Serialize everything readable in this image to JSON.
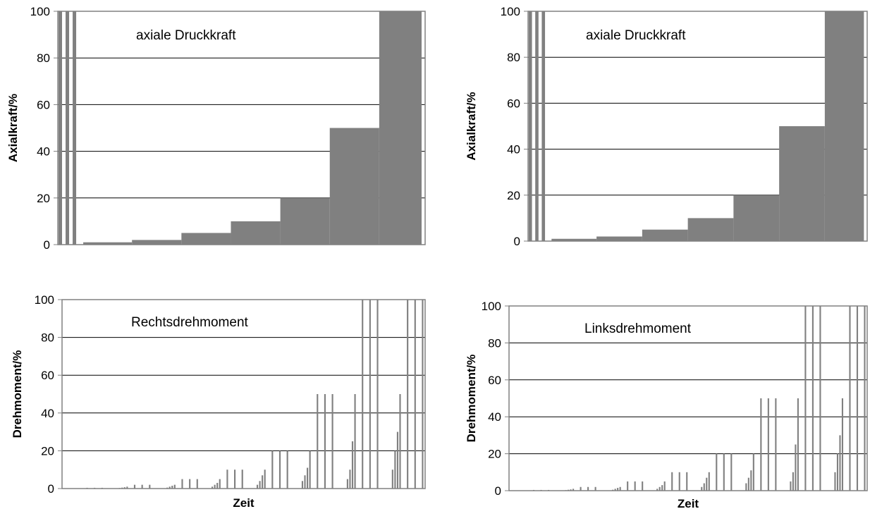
{
  "chart_data": [
    {
      "id": "top-left",
      "type": "bar",
      "title": "",
      "annotation": "axiale Druckkraft",
      "xlabel": "",
      "ylabel": "Axialkraft/%",
      "ylim": [
        0,
        100
      ],
      "yticks": [
        "0",
        "20",
        "40",
        "60",
        "80",
        "100"
      ],
      "grid": true,
      "x_range": [
        0,
        52
      ],
      "bar_color": "#808080",
      "bars": [
        {
          "x0": 0.1,
          "x1": 0.6,
          "y": 100
        },
        {
          "x0": 1.1,
          "x1": 1.6,
          "y": 100
        },
        {
          "x0": 2.1,
          "x1": 2.6,
          "y": 100
        },
        {
          "x0": 3.6,
          "x1": 10.5,
          "y": 1
        },
        {
          "x0": 10.5,
          "x1": 17.5,
          "y": 2
        },
        {
          "x0": 17.5,
          "x1": 24.5,
          "y": 5
        },
        {
          "x0": 24.5,
          "x1": 31.5,
          "y": 10
        },
        {
          "x0": 31.5,
          "x1": 38.5,
          "y": 20
        },
        {
          "x0": 38.5,
          "x1": 45.5,
          "y": 50
        },
        {
          "x0": 45.5,
          "x1": 51.5,
          "y": 100
        }
      ]
    },
    {
      "id": "top-right",
      "type": "bar",
      "title": "",
      "annotation": "axiale Druckkraft",
      "xlabel": "",
      "ylabel": "Axialkraft/%",
      "ylim": [
        0,
        100
      ],
      "yticks": [
        "0",
        "20",
        "40",
        "60",
        "80",
        "100"
      ],
      "grid": true,
      "x_range": [
        0,
        52
      ],
      "bar_color": "#808080",
      "bars": [
        {
          "x0": 0.1,
          "x1": 0.6,
          "y": 100
        },
        {
          "x0": 1.1,
          "x1": 1.6,
          "y": 100
        },
        {
          "x0": 2.1,
          "x1": 2.6,
          "y": 100
        },
        {
          "x0": 3.6,
          "x1": 10.5,
          "y": 1
        },
        {
          "x0": 10.5,
          "x1": 17.5,
          "y": 2
        },
        {
          "x0": 17.5,
          "x1": 24.5,
          "y": 5
        },
        {
          "x0": 24.5,
          "x1": 31.5,
          "y": 10
        },
        {
          "x0": 31.5,
          "x1": 38.5,
          "y": 20
        },
        {
          "x0": 38.5,
          "x1": 45.5,
          "y": 50
        },
        {
          "x0": 45.5,
          "x1": 51.5,
          "y": 100
        }
      ]
    },
    {
      "id": "bottom-left",
      "type": "bar",
      "title": "",
      "annotation": "Rechtsdrehmoment",
      "xlabel": "Zeit",
      "ylabel": "Drehmoment/%",
      "ylim": [
        0,
        100
      ],
      "yticks": [
        "0",
        "20",
        "40",
        "60",
        "80",
        "100"
      ],
      "grid": true,
      "x_range": [
        0,
        145
      ],
      "bar_width": 0.6,
      "bar_color": "#808080",
      "bars": [
        {
          "x": 10,
          "y": 0.4
        },
        {
          "x": 13,
          "y": 0.4
        },
        {
          "x": 16,
          "y": 0.4
        },
        {
          "x": 23,
          "y": 0.3
        },
        {
          "x": 24,
          "y": 0.5
        },
        {
          "x": 25,
          "y": 0.7
        },
        {
          "x": 26,
          "y": 1
        },
        {
          "x": 29,
          "y": 2
        },
        {
          "x": 32,
          "y": 2
        },
        {
          "x": 35,
          "y": 2
        },
        {
          "x": 42,
          "y": 0.5
        },
        {
          "x": 43,
          "y": 1
        },
        {
          "x": 44,
          "y": 1.5
        },
        {
          "x": 45,
          "y": 2
        },
        {
          "x": 48,
          "y": 5
        },
        {
          "x": 51,
          "y": 5
        },
        {
          "x": 54,
          "y": 5
        },
        {
          "x": 60,
          "y": 1
        },
        {
          "x": 61,
          "y": 2
        },
        {
          "x": 62,
          "y": 3
        },
        {
          "x": 63,
          "y": 5
        },
        {
          "x": 66,
          "y": 10
        },
        {
          "x": 69,
          "y": 10
        },
        {
          "x": 72,
          "y": 10
        },
        {
          "x": 78,
          "y": 2
        },
        {
          "x": 79,
          "y": 4
        },
        {
          "x": 80,
          "y": 7
        },
        {
          "x": 81,
          "y": 10
        },
        {
          "x": 84,
          "y": 20
        },
        {
          "x": 87,
          "y": 20
        },
        {
          "x": 90,
          "y": 20
        },
        {
          "x": 96,
          "y": 4
        },
        {
          "x": 97,
          "y": 7
        },
        {
          "x": 98,
          "y": 11
        },
        {
          "x": 99,
          "y": 20
        },
        {
          "x": 102,
          "y": 50
        },
        {
          "x": 105,
          "y": 50
        },
        {
          "x": 108,
          "y": 50
        },
        {
          "x": 114,
          "y": 5
        },
        {
          "x": 115,
          "y": 10
        },
        {
          "x": 116,
          "y": 25
        },
        {
          "x": 117,
          "y": 50
        },
        {
          "x": 120,
          "y": 100
        },
        {
          "x": 123,
          "y": 100
        },
        {
          "x": 126,
          "y": 100
        },
        {
          "x": 132,
          "y": 10
        },
        {
          "x": 133,
          "y": 20
        },
        {
          "x": 134,
          "y": 30
        },
        {
          "x": 135,
          "y": 50
        },
        {
          "x": 138,
          "y": 100
        },
        {
          "x": 141,
          "y": 100
        },
        {
          "x": 144,
          "y": 100
        }
      ]
    },
    {
      "id": "bottom-right",
      "type": "bar",
      "title": "",
      "annotation": "Linksdrehmoment",
      "xlabel": "Zeit",
      "ylabel": "Drehmoment/%",
      "ylim": [
        0,
        100
      ],
      "yticks": [
        "0",
        "20",
        "40",
        "60",
        "80",
        "100"
      ],
      "grid": true,
      "x_range": [
        0,
        145
      ],
      "bar_width": 0.6,
      "bar_color": "#808080",
      "bars": [
        {
          "x": 10,
          "y": 0.4
        },
        {
          "x": 13,
          "y": 0.4
        },
        {
          "x": 16,
          "y": 0.4
        },
        {
          "x": 23,
          "y": 0.3
        },
        {
          "x": 24,
          "y": 0.5
        },
        {
          "x": 25,
          "y": 0.7
        },
        {
          "x": 26,
          "y": 1
        },
        {
          "x": 29,
          "y": 2
        },
        {
          "x": 32,
          "y": 2
        },
        {
          "x": 35,
          "y": 2
        },
        {
          "x": 42,
          "y": 0.5
        },
        {
          "x": 43,
          "y": 1
        },
        {
          "x": 44,
          "y": 1.5
        },
        {
          "x": 45,
          "y": 2
        },
        {
          "x": 48,
          "y": 5
        },
        {
          "x": 51,
          "y": 5
        },
        {
          "x": 54,
          "y": 5
        },
        {
          "x": 60,
          "y": 1
        },
        {
          "x": 61,
          "y": 2
        },
        {
          "x": 62,
          "y": 3
        },
        {
          "x": 63,
          "y": 5
        },
        {
          "x": 66,
          "y": 10
        },
        {
          "x": 69,
          "y": 10
        },
        {
          "x": 72,
          "y": 10
        },
        {
          "x": 78,
          "y": 2
        },
        {
          "x": 79,
          "y": 4
        },
        {
          "x": 80,
          "y": 7
        },
        {
          "x": 81,
          "y": 10
        },
        {
          "x": 84,
          "y": 20
        },
        {
          "x": 87,
          "y": 20
        },
        {
          "x": 90,
          "y": 20
        },
        {
          "x": 96,
          "y": 4
        },
        {
          "x": 97,
          "y": 7
        },
        {
          "x": 98,
          "y": 11
        },
        {
          "x": 99,
          "y": 20
        },
        {
          "x": 102,
          "y": 50
        },
        {
          "x": 105,
          "y": 50
        },
        {
          "x": 108,
          "y": 50
        },
        {
          "x": 114,
          "y": 5
        },
        {
          "x": 115,
          "y": 10
        },
        {
          "x": 116,
          "y": 25
        },
        {
          "x": 117,
          "y": 50
        },
        {
          "x": 120,
          "y": 100
        },
        {
          "x": 123,
          "y": 100
        },
        {
          "x": 126,
          "y": 100
        },
        {
          "x": 132,
          "y": 10
        },
        {
          "x": 133,
          "y": 20
        },
        {
          "x": 134,
          "y": 30
        },
        {
          "x": 135,
          "y": 50
        },
        {
          "x": 138,
          "y": 100
        },
        {
          "x": 141,
          "y": 100
        },
        {
          "x": 144,
          "y": 100
        }
      ]
    }
  ]
}
